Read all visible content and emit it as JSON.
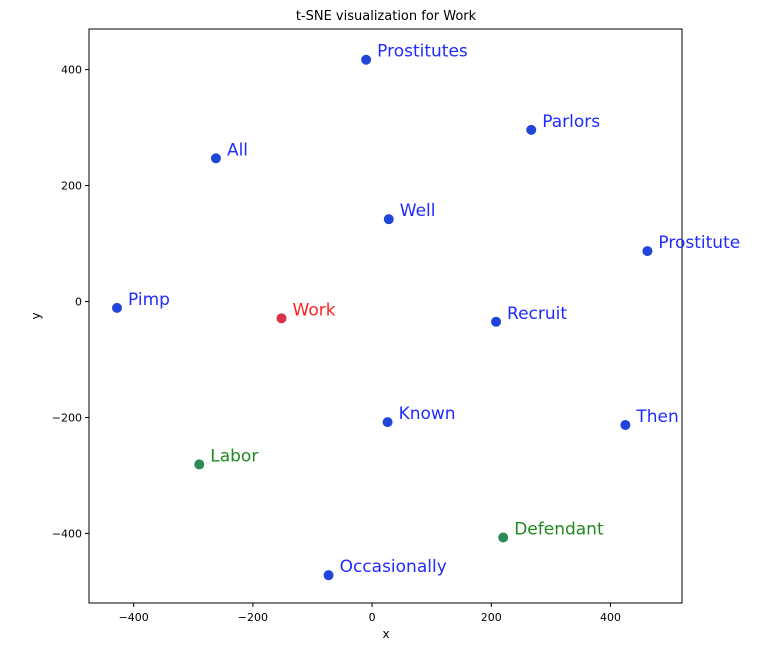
{
  "chart_data": {
    "type": "scatter",
    "title": "t-SNE visualization for Work",
    "xlabel": "x",
    "ylabel": "y",
    "xlim": [
      -475,
      520
    ],
    "ylim": [
      -520,
      470
    ],
    "xticks": [
      -400,
      -200,
      0,
      200,
      400
    ],
    "yticks": [
      -400,
      -200,
      0,
      200,
      400
    ],
    "tick_labels_x": [
      "−400",
      "−200",
      "0",
      "200",
      "400"
    ],
    "tick_labels_y": [
      "−400",
      "−200",
      "0",
      "200",
      "400"
    ],
    "grid": false,
    "points": [
      {
        "label": "Prostitutes",
        "x": -10,
        "y": 417,
        "color": "#1f2bff",
        "marker_color": "#1f46d8"
      },
      {
        "label": "Parlors",
        "x": 267,
        "y": 296,
        "color": "#1f2bff",
        "marker_color": "#1f46d8"
      },
      {
        "label": "All",
        "x": -262,
        "y": 247,
        "color": "#1f2bff",
        "marker_color": "#1f46d8"
      },
      {
        "label": "Well",
        "x": 28,
        "y": 142,
        "color": "#1f2bff",
        "marker_color": "#1f46d8"
      },
      {
        "label": "Prostitute",
        "x": 462,
        "y": 87,
        "color": "#1f2bff",
        "marker_color": "#1f46d8"
      },
      {
        "label": "Pimp",
        "x": -428,
        "y": -11,
        "color": "#1f2bff",
        "marker_color": "#1f46d8"
      },
      {
        "label": "Work",
        "x": -152,
        "y": -29,
        "color": "#ff1f1f",
        "marker_color": "#d8334a"
      },
      {
        "label": "Recruit",
        "x": 208,
        "y": -35,
        "color": "#1f2bff",
        "marker_color": "#1f46d8"
      },
      {
        "label": "Known",
        "x": 26,
        "y": -208,
        "color": "#1f2bff",
        "marker_color": "#1f46d8"
      },
      {
        "label": "Then",
        "x": 425,
        "y": -213,
        "color": "#1f2bff",
        "marker_color": "#1f46d8"
      },
      {
        "label": "Labor",
        "x": -290,
        "y": -281,
        "color": "#1f8a1f",
        "marker_color": "#2e8b57"
      },
      {
        "label": "Defendant",
        "x": 220,
        "y": -407,
        "color": "#1f8a1f",
        "marker_color": "#2e8b57"
      },
      {
        "label": "Occasionally",
        "x": -73,
        "y": -472,
        "color": "#1f2bff",
        "marker_color": "#1f46d8"
      }
    ]
  }
}
